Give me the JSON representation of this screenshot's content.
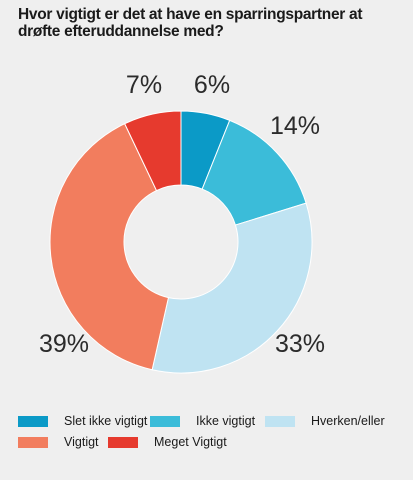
{
  "chart_data": {
    "type": "pie",
    "title": "Hvor vigtigt er det at have en sparringspartner at drøfte efteruddannelse med?",
    "categories": [
      "Slet ikke vigtigt",
      "Ikke vigtigt",
      "Hverken/eller",
      "Vigtigt",
      "Meget Vigtigt"
    ],
    "values": [
      6,
      14,
      33,
      39,
      7
    ],
    "value_labels": [
      "6%",
      "14%",
      "33%",
      "39%",
      "7%"
    ],
    "colors": [
      "#0b9ac7",
      "#3bbcd9",
      "#bfe3f2",
      "#f27d5e",
      "#e63a2e"
    ],
    "donut": true,
    "legend": "bottom"
  }
}
